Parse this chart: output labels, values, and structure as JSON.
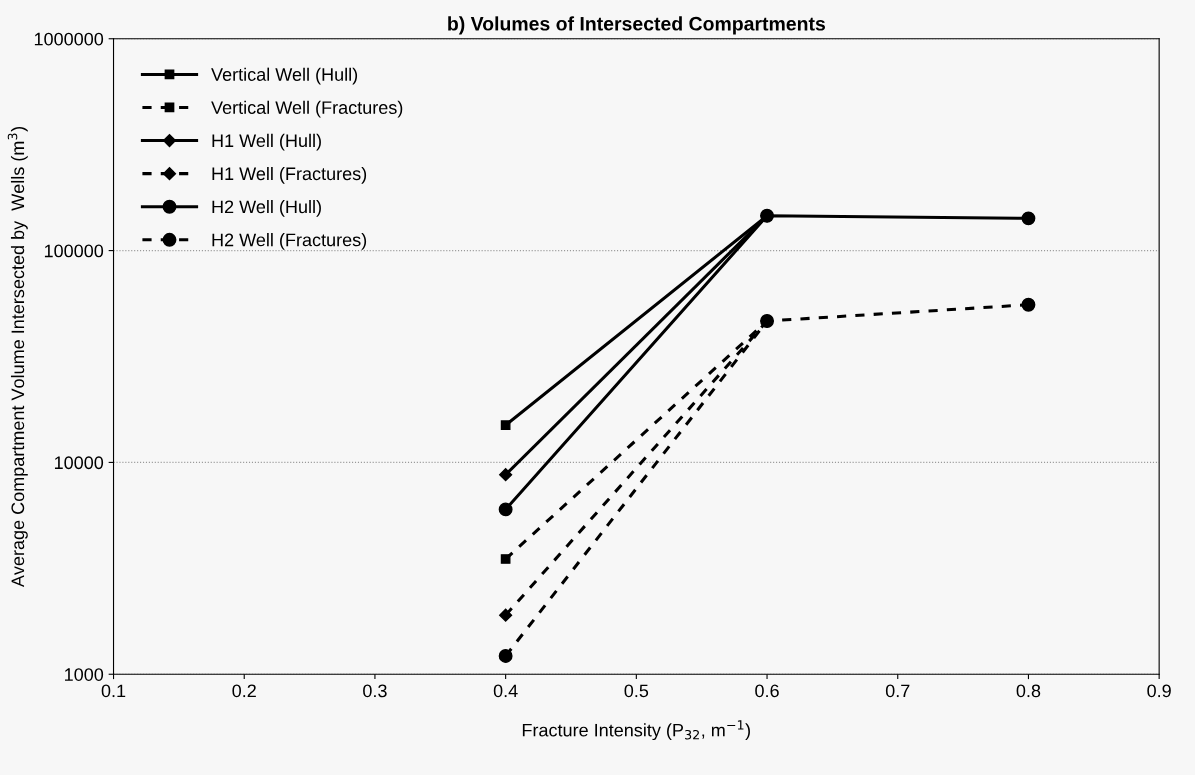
{
  "chart_data": {
    "type": "line",
    "title": "b) Volumes of Intersected Compartments",
    "xlabel": "Fracture Intensity (P$_{32}$, m$^{−1}$)",
    "ylabel": "Average Compartment Volume Intersected by  Wells (m$^{3}$)",
    "x": [
      0.4,
      0.6,
      0.8
    ],
    "log": "y",
    "xlim": [
      0.1,
      0.9
    ],
    "xticks": [
      0.1,
      0.2,
      0.3,
      0.4,
      0.5,
      0.6,
      0.7,
      0.8,
      0.9
    ],
    "ylim": [
      1000,
      1000000
    ],
    "yticks": [
      1000,
      10000,
      100000,
      1000000
    ],
    "grid": "y",
    "legend": "top left",
    "series": [
      {
        "name": "Vertical Well (Hull)",
        "color": "#000000",
        "marker": "square",
        "line_style": "solid",
        "values": [
          15000,
          146000,
          null
        ]
      },
      {
        "name": "Vertical Well (Fractures)",
        "color": "#000000",
        "marker": "square",
        "line_style": "dashed",
        "values": [
          3500,
          46500,
          null
        ]
      },
      {
        "name": "H1 Well (Hull)",
        "color": "#000000",
        "marker": "diamond",
        "line_style": "solid",
        "values": [
          8750,
          146000,
          null
        ]
      },
      {
        "name": "H1 Well (Fractures)",
        "color": "#000000",
        "marker": "diamond",
        "line_style": "dashed",
        "values": [
          1900,
          46500,
          null
        ]
      },
      {
        "name": "H2 Well (Hull)",
        "color": "#000000",
        "marker": "circle",
        "line_style": "solid",
        "values": [
          6000,
          146000,
          142000
        ]
      },
      {
        "name": "H2 Well (Fractures)",
        "color": "#000000",
        "marker": "circle",
        "line_style": "dashed",
        "values": [
          1220,
          46500,
          55500
        ]
      }
    ]
  }
}
